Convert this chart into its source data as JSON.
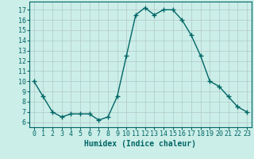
{
  "x": [
    0,
    1,
    2,
    3,
    4,
    5,
    6,
    7,
    8,
    9,
    10,
    11,
    12,
    13,
    14,
    15,
    16,
    17,
    18,
    19,
    20,
    21,
    22,
    23
  ],
  "y": [
    10,
    8.5,
    7.0,
    6.5,
    6.8,
    6.8,
    6.8,
    6.2,
    6.5,
    8.5,
    12.5,
    16.5,
    17.2,
    16.5,
    17.0,
    17.0,
    16.0,
    14.5,
    12.5,
    10.0,
    9.5,
    8.5,
    7.5,
    7.0
  ],
  "line_color": "#006666",
  "marker": "+",
  "bg_color": "#cceee8",
  "grid_color": "#b0c8c8",
  "xlabel": "Humidex (Indice chaleur)",
  "xlim": [
    -0.5,
    23.5
  ],
  "ylim": [
    5.5,
    17.8
  ],
  "yticks": [
    6,
    7,
    8,
    9,
    10,
    11,
    12,
    13,
    14,
    15,
    16,
    17
  ],
  "xticks": [
    0,
    1,
    2,
    3,
    4,
    5,
    6,
    7,
    8,
    9,
    10,
    11,
    12,
    13,
    14,
    15,
    16,
    17,
    18,
    19,
    20,
    21,
    22,
    23
  ],
  "xlabel_fontsize": 7,
  "tick_fontsize": 6,
  "line_width": 1.0,
  "marker_size": 4
}
